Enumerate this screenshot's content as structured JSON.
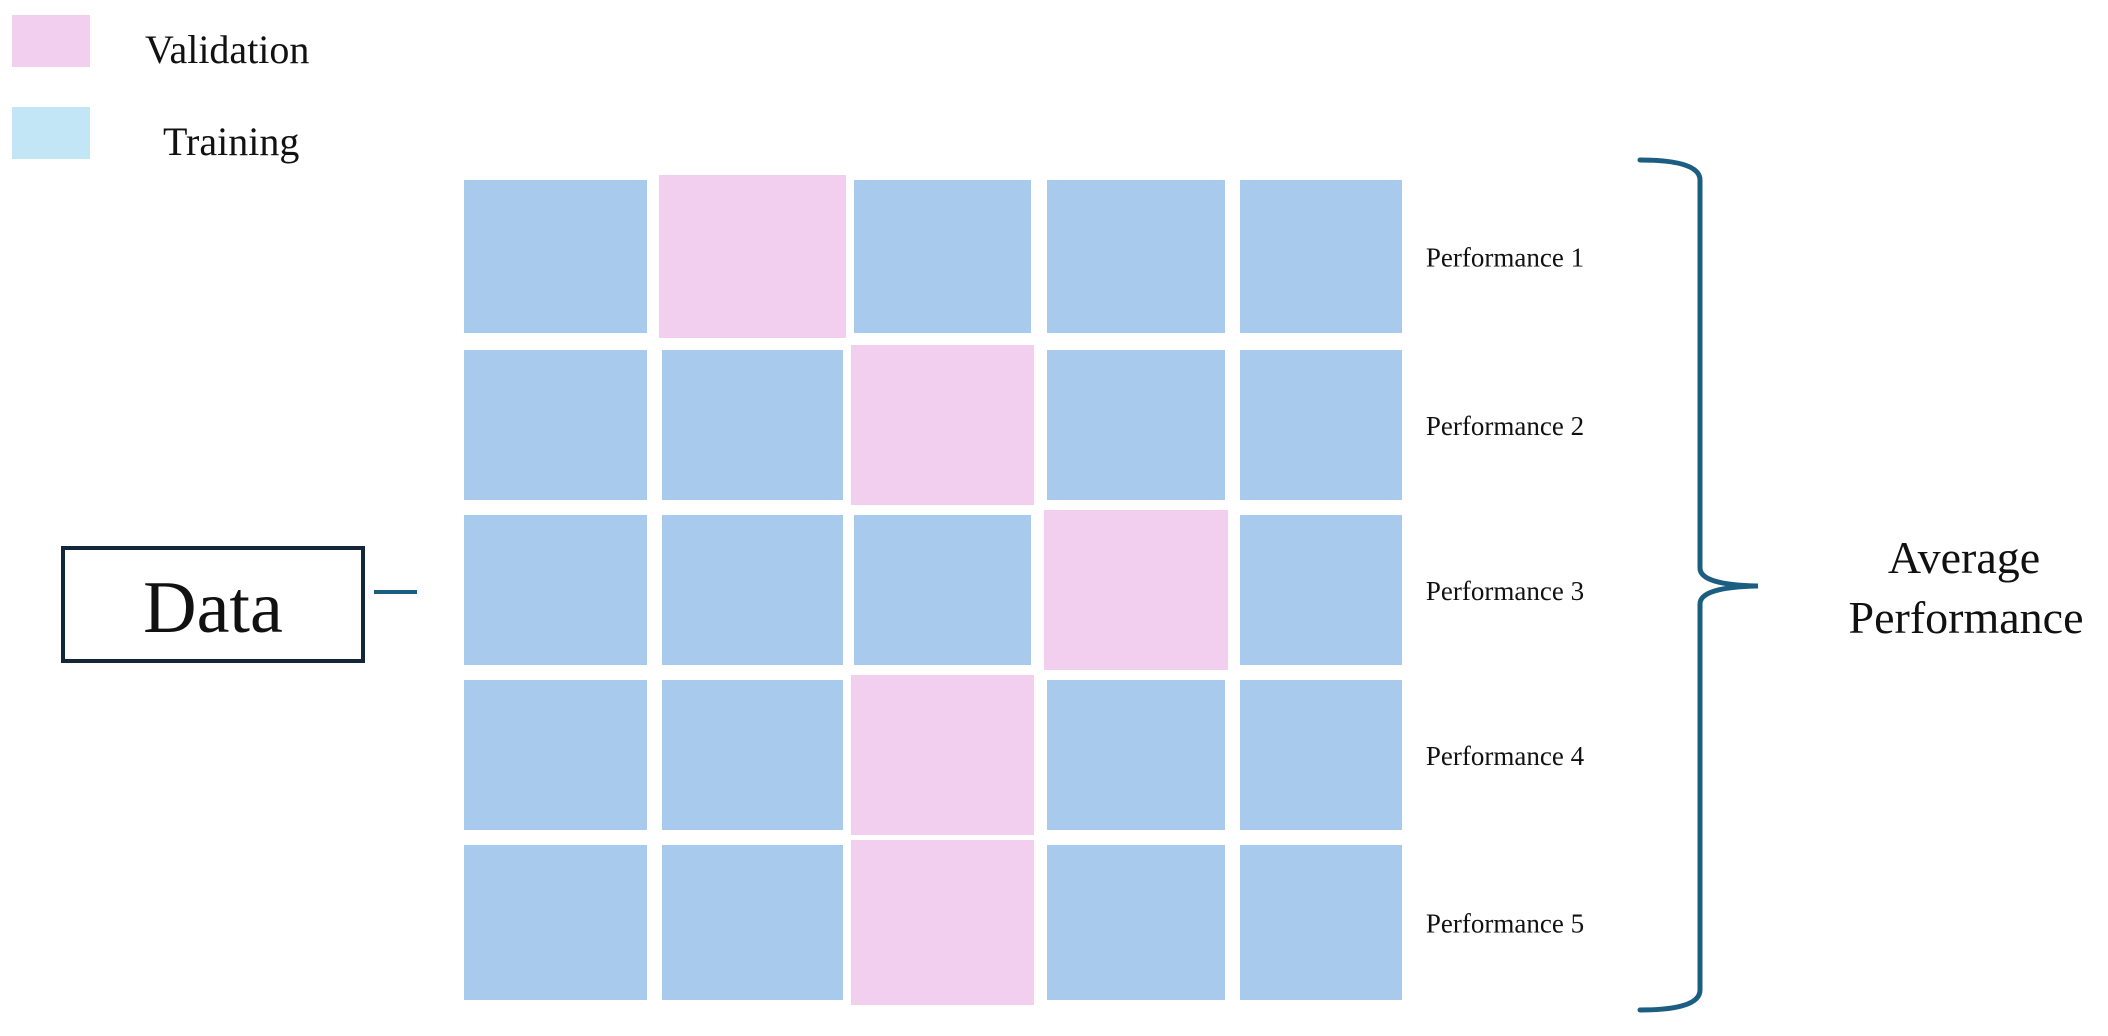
{
  "legend": {
    "items": [
      {
        "label": "Validation",
        "color": "#f2cfee"
      },
      {
        "label": "Training",
        "color": "#c2e6f5"
      }
    ]
  },
  "data_box": {
    "label": "Data",
    "border_color": "#14263a"
  },
  "grid": {
    "training_color": "#a8caec",
    "validation_color": "#f2cfee",
    "rows": [
      {
        "label": "Performance 1",
        "cells": [
          "Training",
          "Validation",
          "Training",
          "Training",
          "Training"
        ]
      },
      {
        "label": "Performance 2",
        "cells": [
          "Training",
          "Training",
          "Validation",
          "Training",
          "Training"
        ]
      },
      {
        "label": "Performance 3",
        "cells": [
          "Training",
          "Training",
          "Training",
          "Validation",
          "Training"
        ]
      },
      {
        "label": "Performance 4",
        "cells": [
          "Training",
          "Training",
          "Validation",
          "Training",
          "Training"
        ]
      },
      {
        "label": "Performance 5",
        "cells": [
          "Training",
          "Training",
          "Validation",
          "Training",
          "Training"
        ]
      }
    ]
  },
  "brace": {
    "color": "#1c5e82"
  },
  "summary": {
    "line1": "Average",
    "line2": "Performance"
  }
}
